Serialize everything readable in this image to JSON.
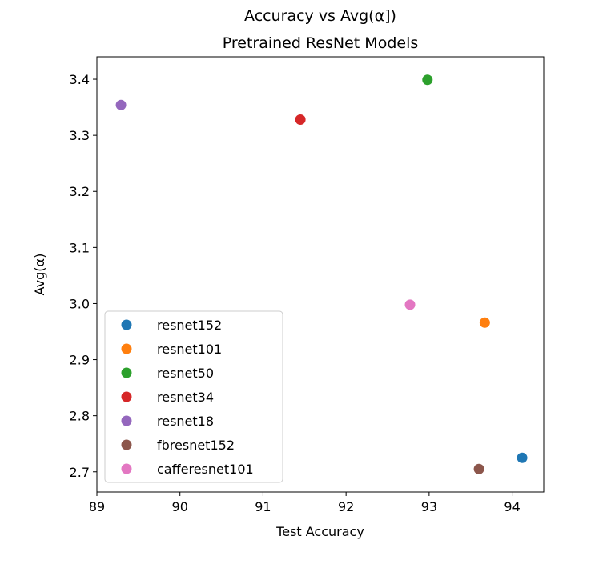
{
  "chart_data": {
    "type": "scatter",
    "title_line1": "Accuracy vs Avg(α])",
    "title_line2": "Pretrained ResNet  Models",
    "xlabel": "Test Accuracy",
    "ylabel": "Avg(α)",
    "xlim": [
      89.0,
      94.38
    ],
    "ylim": [
      2.664,
      3.44
    ],
    "xticks": [
      89,
      90,
      91,
      92,
      93,
      94
    ],
    "xtick_labels": [
      "89",
      "90",
      "91",
      "92",
      "93",
      "94"
    ],
    "yticks": [
      2.7,
      2.8,
      2.9,
      3.0,
      3.1,
      3.2,
      3.3,
      3.4
    ],
    "ytick_labels": [
      "2.7",
      "2.8",
      "2.9",
      "3.0",
      "3.1",
      "3.2",
      "3.3",
      "3.4"
    ],
    "grid": false,
    "legend_position": "lower-left",
    "series": [
      {
        "name": "resnet152",
        "color": "#1f77b4",
        "x": 94.12,
        "y": 2.725
      },
      {
        "name": "resnet101",
        "color": "#ff7f0e",
        "x": 93.67,
        "y": 2.966
      },
      {
        "name": "resnet50",
        "color": "#2ca02c",
        "x": 92.98,
        "y": 3.399
      },
      {
        "name": "resnet34",
        "color": "#d62728",
        "x": 91.45,
        "y": 3.328
      },
      {
        "name": "resnet18",
        "color": "#9467bd",
        "x": 89.29,
        "y": 3.354
      },
      {
        "name": "fbresnet152",
        "color": "#8c564b",
        "x": 93.6,
        "y": 2.705
      },
      {
        "name": "cafferesnet101",
        "color": "#e377c2",
        "x": 92.77,
        "y": 2.998
      }
    ]
  }
}
